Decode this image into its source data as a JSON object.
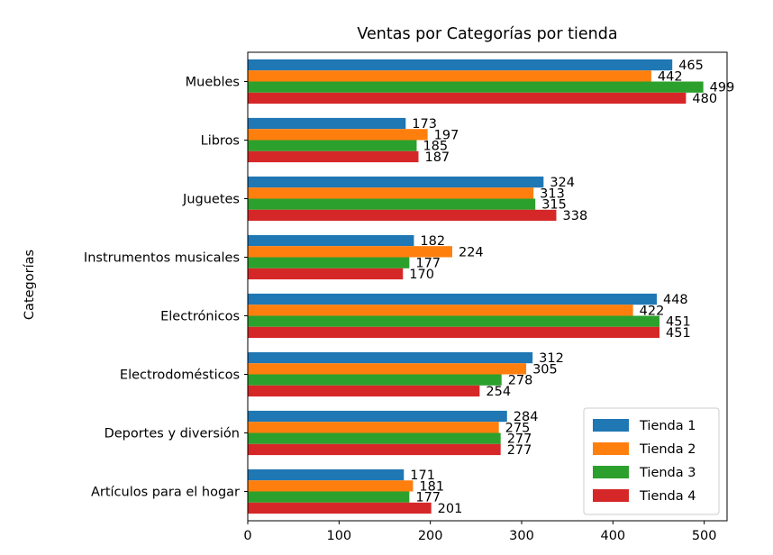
{
  "chart_data": {
    "type": "bar",
    "orientation": "horizontal",
    "title": "Ventas por Categorías por tienda",
    "xlabel": "",
    "ylabel": "Categorías",
    "xlim": [
      0,
      525
    ],
    "xticks": [
      0,
      100,
      200,
      300,
      400,
      500
    ],
    "grid": false,
    "legend_position": "lower-right",
    "categories": [
      "Artículos para el hogar",
      "Deportes y diversión",
      "Electrodomésticos",
      "Electrónicos",
      "Instrumentos musicales",
      "Juguetes",
      "Libros",
      "Muebles"
    ],
    "series": [
      {
        "name": "Tienda 1",
        "color": "#1f77b4",
        "values": [
          171,
          284,
          312,
          448,
          182,
          324,
          173,
          465
        ]
      },
      {
        "name": "Tienda 2",
        "color": "#ff7f0e",
        "values": [
          181,
          275,
          305,
          422,
          224,
          313,
          197,
          442
        ]
      },
      {
        "name": "Tienda 3",
        "color": "#2ca02c",
        "values": [
          177,
          277,
          278,
          451,
          177,
          315,
          185,
          499
        ]
      },
      {
        "name": "Tienda 4",
        "color": "#d62728",
        "values": [
          201,
          277,
          254,
          451,
          170,
          338,
          187,
          480
        ]
      }
    ]
  }
}
